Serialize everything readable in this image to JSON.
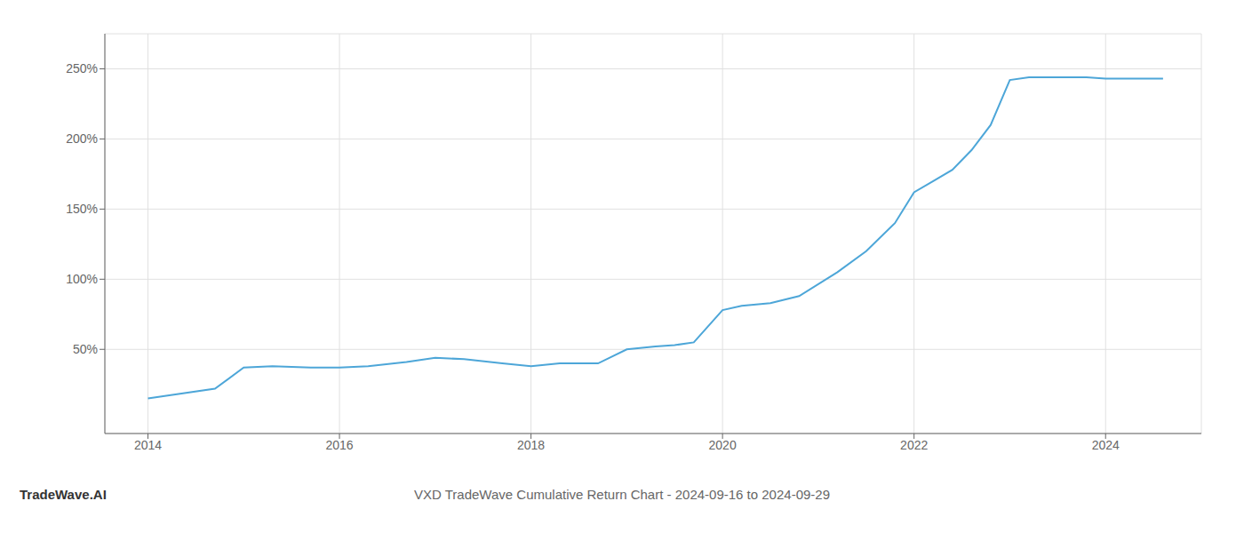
{
  "chart_data": {
    "type": "line",
    "title": "VXD TradeWave Cumulative Return Chart - 2024-09-16 to 2024-09-29",
    "annotations": [
      "TradeWave.AI"
    ],
    "x": [
      2014.0,
      2014.7,
      2015.0,
      2015.3,
      2015.7,
      2016.0,
      2016.3,
      2016.7,
      2017.0,
      2017.3,
      2017.7,
      2018.0,
      2018.3,
      2018.7,
      2019.0,
      2019.3,
      2019.5,
      2019.7,
      2020.0,
      2020.2,
      2020.5,
      2020.8,
      2021.2,
      2021.5,
      2021.8,
      2022.0,
      2022.2,
      2022.4,
      2022.6,
      2022.8,
      2023.0,
      2023.2,
      2023.5,
      2023.8,
      2024.0,
      2024.3,
      2024.6
    ],
    "values": [
      15,
      22,
      37,
      38,
      37,
      37,
      38,
      41,
      44,
      43,
      40,
      38,
      40,
      40,
      50,
      52,
      53,
      55,
      78,
      81,
      83,
      88,
      105,
      120,
      140,
      162,
      170,
      178,
      192,
      210,
      242,
      244,
      244,
      244,
      243,
      243,
      243
    ],
    "color": "#4da6d8",
    "xlim": [
      2013.55,
      2025.0
    ],
    "ylim": [
      -10,
      275
    ],
    "xticks": [
      2014,
      2016,
      2018,
      2020,
      2022,
      2024
    ],
    "yticks": [
      {
        "value": 50,
        "label": "50%"
      },
      {
        "value": 100,
        "label": "100%"
      },
      {
        "value": 150,
        "label": "150%"
      },
      {
        "value": 200,
        "label": "200%"
      },
      {
        "value": 250,
        "label": "250%"
      }
    ],
    "grid": true
  }
}
